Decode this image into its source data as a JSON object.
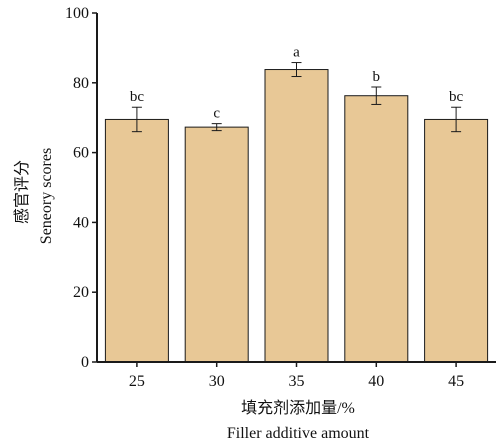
{
  "chart_data": {
    "type": "bar",
    "categories": [
      "25",
      "30",
      "35",
      "40",
      "45"
    ],
    "values": [
      69.5,
      67.3,
      83.8,
      76.3,
      69.5
    ],
    "errors": [
      3.5,
      1.0,
      2.0,
      2.5,
      3.5
    ],
    "significance": [
      "bc",
      "c",
      "a",
      "b",
      "bc"
    ],
    "ylim": [
      0,
      100
    ],
    "yticks": [
      "0",
      "20",
      "40",
      "60",
      "80",
      "100"
    ],
    "ylabel_cn": "感官评分",
    "ylabel_en": "Seneory scores",
    "xlabel_cn": "填充剂添加量/%",
    "xlabel_en": "Filler additive amount",
    "bar_color": "#e8c896",
    "edge_color": "#1a1a1a"
  }
}
